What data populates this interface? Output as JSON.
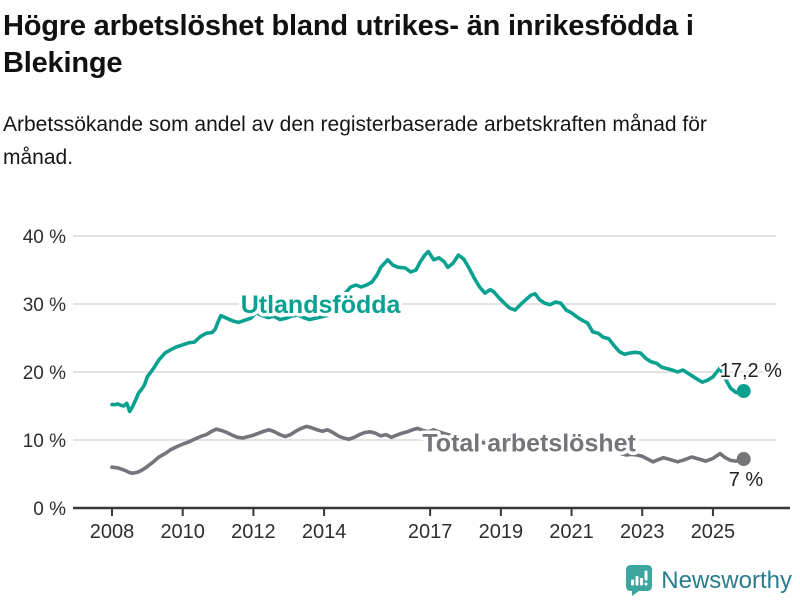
{
  "header": {
    "title": "Högre arbetslöshet bland utrikes- än inrikesfödda i Blekinge",
    "subtitle": "Arbetssökande som andel av den registerbaserade arbetskraften månad för månad."
  },
  "footer": {
    "brand": "Newsworthy"
  },
  "colors": {
    "foreign_line": "#0aa191",
    "total_line": "#74747a",
    "grid": "#dadada",
    "axis": "#383838",
    "tick_text": "#2e2e2e",
    "value_label_text": "#1f1f1f",
    "brand_bubble": "#3ba69e",
    "brand_text": "#2a7d8e"
  },
  "chart_data": {
    "type": "line",
    "title": "Högre arbetslöshet bland utrikes- än inrikesfödda i Blekinge",
    "subtitle": "Arbetssökande som andel av den registerbaserade arbetskraften månad för månad.",
    "xlabel": "",
    "ylabel": "",
    "grid": "horizontal",
    "legend_position": "inline",
    "xlim": [
      2007.9,
      2026.1
    ],
    "ylim": [
      0,
      40
    ],
    "x_ticks": [
      2008,
      2010,
      2012,
      2014,
      2017,
      2019,
      2021,
      2023,
      2025
    ],
    "y_ticks": [
      {
        "value": 0,
        "label": "0 %"
      },
      {
        "value": 10,
        "label": "10 %"
      },
      {
        "value": 20,
        "label": "20 %"
      },
      {
        "value": 30,
        "label": "30 %"
      },
      {
        "value": 40,
        "label": "40 %"
      }
    ],
    "series": [
      {
        "name": "Utlandsfödda",
        "color": "#0aa191",
        "end_label": "17,2 %",
        "end_value": 17.2,
        "label_anchor": {
          "x": 2013.9,
          "y": 30.0
        },
        "points": [
          [
            2008.0,
            15.2
          ],
          [
            2008.08,
            15.2
          ],
          [
            2008.17,
            15.3
          ],
          [
            2008.25,
            15.1
          ],
          [
            2008.33,
            15.0
          ],
          [
            2008.42,
            15.4
          ],
          [
            2008.5,
            14.2
          ],
          [
            2008.58,
            14.9
          ],
          [
            2008.67,
            15.9
          ],
          [
            2008.75,
            16.9
          ],
          [
            2008.83,
            17.4
          ],
          [
            2008.92,
            18.1
          ],
          [
            2009.0,
            19.3
          ],
          [
            2009.17,
            20.5
          ],
          [
            2009.33,
            21.8
          ],
          [
            2009.5,
            22.8
          ],
          [
            2009.67,
            23.3
          ],
          [
            2009.83,
            23.7
          ],
          [
            2010.0,
            24.0
          ],
          [
            2010.17,
            24.3
          ],
          [
            2010.33,
            24.4
          ],
          [
            2010.5,
            25.2
          ],
          [
            2010.67,
            25.7
          ],
          [
            2010.83,
            25.8
          ],
          [
            2010.92,
            26.3
          ],
          [
            2011.0,
            27.4
          ],
          [
            2011.08,
            28.3
          ],
          [
            2011.25,
            27.9
          ],
          [
            2011.42,
            27.5
          ],
          [
            2011.58,
            27.3
          ],
          [
            2011.75,
            27.6
          ],
          [
            2011.92,
            27.9
          ],
          [
            2012.08,
            28.7
          ],
          [
            2012.25,
            28.3
          ],
          [
            2012.42,
            28.0
          ],
          [
            2012.58,
            28.2
          ],
          [
            2012.75,
            27.7
          ],
          [
            2012.92,
            27.9
          ],
          [
            2013.08,
            28.2
          ],
          [
            2013.25,
            28.4
          ],
          [
            2013.42,
            28.0
          ],
          [
            2013.58,
            27.7
          ],
          [
            2013.75,
            27.9
          ],
          [
            2013.92,
            28.1
          ],
          [
            2014.08,
            28.3
          ],
          [
            2014.2,
            29.1
          ],
          [
            2014.4,
            30.3
          ],
          [
            2014.55,
            31.3
          ],
          [
            2014.75,
            32.5
          ],
          [
            2014.9,
            32.8
          ],
          [
            2015.05,
            32.5
          ],
          [
            2015.2,
            32.8
          ],
          [
            2015.35,
            33.2
          ],
          [
            2015.5,
            34.3
          ],
          [
            2015.6,
            35.4
          ],
          [
            2015.8,
            36.5
          ],
          [
            2015.95,
            35.7
          ],
          [
            2016.1,
            35.4
          ],
          [
            2016.3,
            35.3
          ],
          [
            2016.45,
            34.7
          ],
          [
            2016.6,
            35.0
          ],
          [
            2016.7,
            36.0
          ],
          [
            2016.85,
            37.2
          ],
          [
            2016.95,
            37.7
          ],
          [
            2017.1,
            36.5
          ],
          [
            2017.25,
            36.8
          ],
          [
            2017.4,
            36.2
          ],
          [
            2017.5,
            35.4
          ],
          [
            2017.65,
            36.0
          ],
          [
            2017.8,
            37.2
          ],
          [
            2017.95,
            36.6
          ],
          [
            2018.1,
            35.3
          ],
          [
            2018.25,
            33.8
          ],
          [
            2018.4,
            32.5
          ],
          [
            2018.55,
            31.6
          ],
          [
            2018.7,
            32.1
          ],
          [
            2018.8,
            31.8
          ],
          [
            2018.95,
            30.9
          ],
          [
            2019.1,
            30.1
          ],
          [
            2019.25,
            29.4
          ],
          [
            2019.4,
            29.1
          ],
          [
            2019.55,
            29.9
          ],
          [
            2019.7,
            30.6
          ],
          [
            2019.85,
            31.3
          ],
          [
            2019.97,
            31.5
          ],
          [
            2020.1,
            30.6
          ],
          [
            2020.25,
            30.1
          ],
          [
            2020.4,
            29.9
          ],
          [
            2020.55,
            30.3
          ],
          [
            2020.7,
            30.1
          ],
          [
            2020.85,
            29.1
          ],
          [
            2021.0,
            28.7
          ],
          [
            2021.15,
            28.1
          ],
          [
            2021.3,
            27.6
          ],
          [
            2021.45,
            27.2
          ],
          [
            2021.6,
            25.9
          ],
          [
            2021.75,
            25.7
          ],
          [
            2021.9,
            25.1
          ],
          [
            2022.05,
            24.9
          ],
          [
            2022.2,
            23.9
          ],
          [
            2022.35,
            23.0
          ],
          [
            2022.5,
            22.6
          ],
          [
            2022.65,
            22.8
          ],
          [
            2022.8,
            22.9
          ],
          [
            2022.95,
            22.8
          ],
          [
            2023.1,
            22.0
          ],
          [
            2023.25,
            21.5
          ],
          [
            2023.4,
            21.3
          ],
          [
            2023.55,
            20.7
          ],
          [
            2023.7,
            20.5
          ],
          [
            2023.85,
            20.3
          ],
          [
            2024.0,
            20.0
          ],
          [
            2024.15,
            20.3
          ],
          [
            2024.3,
            19.8
          ],
          [
            2024.45,
            19.3
          ],
          [
            2024.6,
            18.8
          ],
          [
            2024.7,
            18.5
          ],
          [
            2024.85,
            18.8
          ],
          [
            2025.0,
            19.3
          ],
          [
            2025.2,
            20.6
          ],
          [
            2025.35,
            19.0
          ],
          [
            2025.5,
            17.6
          ],
          [
            2025.65,
            17.0
          ],
          [
            2025.75,
            16.9
          ],
          [
            2025.87,
            17.2
          ]
        ]
      },
      {
        "name": "Total arbetslöshet",
        "color": "#74747a",
        "end_label": "7 %",
        "end_value": 7,
        "label_anchor": {
          "x": 2019.8,
          "y": 9.6
        },
        "points": [
          [
            2008.0,
            6.0
          ],
          [
            2008.17,
            5.9
          ],
          [
            2008.33,
            5.6
          ],
          [
            2008.5,
            5.2
          ],
          [
            2008.58,
            5.1
          ],
          [
            2008.75,
            5.3
          ],
          [
            2008.92,
            5.8
          ],
          [
            2009.0,
            6.1
          ],
          [
            2009.17,
            6.8
          ],
          [
            2009.33,
            7.5
          ],
          [
            2009.5,
            8.0
          ],
          [
            2009.67,
            8.6
          ],
          [
            2009.83,
            9.0
          ],
          [
            2010.0,
            9.4
          ],
          [
            2010.17,
            9.7
          ],
          [
            2010.33,
            10.1
          ],
          [
            2010.5,
            10.5
          ],
          [
            2010.67,
            10.8
          ],
          [
            2010.83,
            11.3
          ],
          [
            2010.95,
            11.6
          ],
          [
            2011.1,
            11.4
          ],
          [
            2011.25,
            11.1
          ],
          [
            2011.4,
            10.7
          ],
          [
            2011.55,
            10.4
          ],
          [
            2011.7,
            10.3
          ],
          [
            2011.85,
            10.5
          ],
          [
            2012.0,
            10.7
          ],
          [
            2012.15,
            11.0
          ],
          [
            2012.3,
            11.3
          ],
          [
            2012.45,
            11.5
          ],
          [
            2012.6,
            11.2
          ],
          [
            2012.75,
            10.8
          ],
          [
            2012.9,
            10.5
          ],
          [
            2013.05,
            10.8
          ],
          [
            2013.2,
            11.3
          ],
          [
            2013.35,
            11.7
          ],
          [
            2013.5,
            12.0
          ],
          [
            2013.65,
            11.8
          ],
          [
            2013.8,
            11.5
          ],
          [
            2013.95,
            11.3
          ],
          [
            2014.1,
            11.5
          ],
          [
            2014.25,
            11.1
          ],
          [
            2014.4,
            10.6
          ],
          [
            2014.55,
            10.3
          ],
          [
            2014.7,
            10.1
          ],
          [
            2014.85,
            10.4
          ],
          [
            2015.0,
            10.8
          ],
          [
            2015.15,
            11.1
          ],
          [
            2015.3,
            11.2
          ],
          [
            2015.45,
            11.0
          ],
          [
            2015.6,
            10.6
          ],
          [
            2015.75,
            10.8
          ],
          [
            2015.9,
            10.4
          ],
          [
            2016.05,
            10.7
          ],
          [
            2016.2,
            11.0
          ],
          [
            2016.35,
            11.2
          ],
          [
            2016.5,
            11.5
          ],
          [
            2016.65,
            11.7
          ],
          [
            2016.8,
            11.4
          ],
          [
            2016.95,
            11.2
          ],
          [
            2017.1,
            11.5
          ],
          [
            2017.3,
            11.1
          ],
          [
            2017.5,
            10.8
          ],
          [
            2017.7,
            10.5
          ],
          [
            2017.9,
            10.3
          ],
          [
            2018.1,
            10.1
          ],
          [
            2018.3,
            9.8
          ],
          [
            2018.5,
            9.6
          ],
          [
            2018.7,
            9.4
          ],
          [
            2018.9,
            9.3
          ],
          [
            2019.1,
            9.2
          ],
          [
            2019.3,
            9.0
          ],
          [
            2019.5,
            8.9
          ],
          [
            2019.7,
            9.0
          ],
          [
            2019.9,
            9.2
          ],
          [
            2020.1,
            9.5
          ],
          [
            2020.3,
            10.0
          ],
          [
            2020.5,
            9.9
          ],
          [
            2020.7,
            9.7
          ],
          [
            2020.9,
            9.4
          ],
          [
            2021.1,
            9.1
          ],
          [
            2021.3,
            8.8
          ],
          [
            2021.5,
            8.6
          ],
          [
            2021.7,
            8.5
          ],
          [
            2021.9,
            8.5
          ],
          [
            2022.1,
            8.5
          ],
          [
            2022.25,
            8.3
          ],
          [
            2022.4,
            8.0
          ],
          [
            2022.55,
            7.8
          ],
          [
            2022.7,
            7.9
          ],
          [
            2022.85,
            7.8
          ],
          [
            2023.0,
            7.6
          ],
          [
            2023.15,
            7.2
          ],
          [
            2023.3,
            6.8
          ],
          [
            2023.45,
            7.1
          ],
          [
            2023.6,
            7.4
          ],
          [
            2023.8,
            7.1
          ],
          [
            2024.0,
            6.8
          ],
          [
            2024.2,
            7.1
          ],
          [
            2024.4,
            7.5
          ],
          [
            2024.6,
            7.2
          ],
          [
            2024.8,
            6.9
          ],
          [
            2025.0,
            7.3
          ],
          [
            2025.2,
            8.0
          ],
          [
            2025.35,
            7.4
          ],
          [
            2025.5,
            7.0
          ],
          [
            2025.65,
            6.9
          ],
          [
            2025.75,
            7.0
          ],
          [
            2025.87,
            7.2
          ]
        ]
      }
    ]
  }
}
